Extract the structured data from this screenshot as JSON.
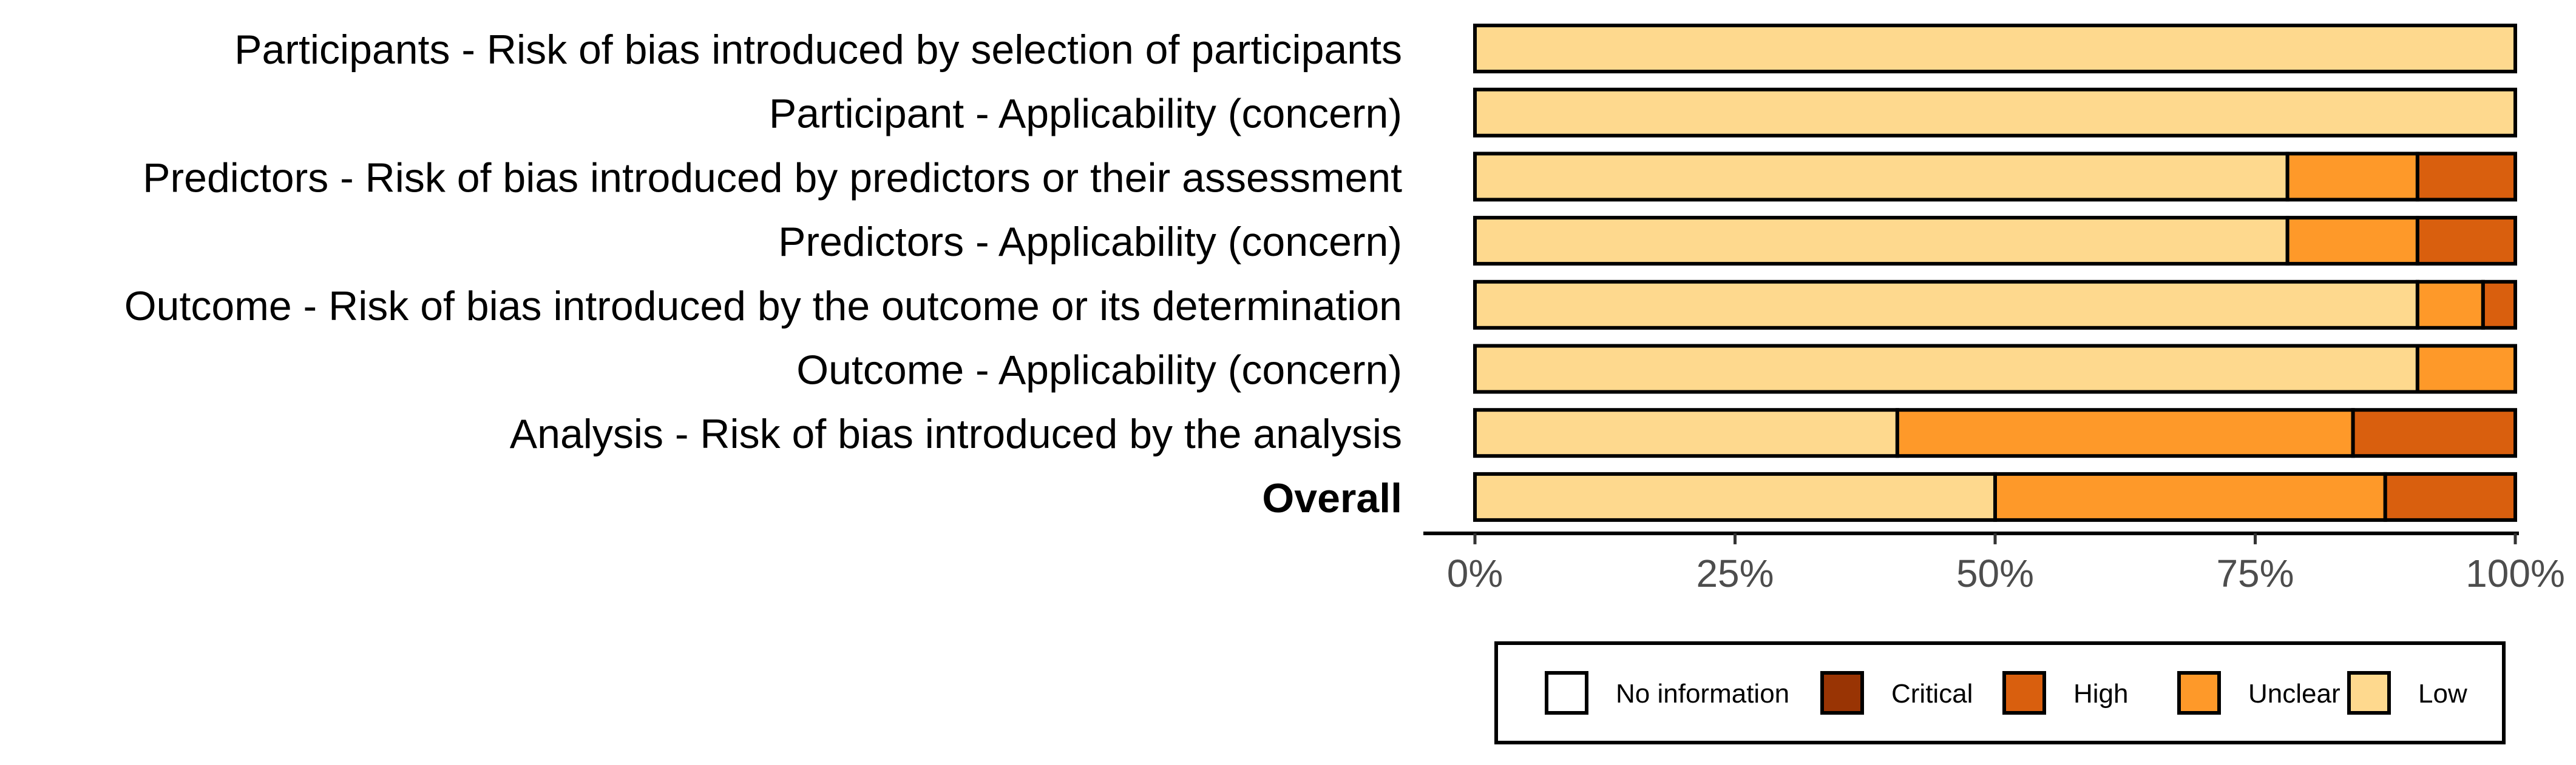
{
  "chart_data": {
    "type": "bar",
    "orientation": "horizontal",
    "stacked": true,
    "categories": [
      "Participants - Risk of bias introduced by selection of participants",
      "Participant - Applicability (concern)",
      "Predictors - Risk of bias introduced by predictors or their assessment",
      "Predictors - Applicability (concern)",
      "Outcome - Risk of bias introduced by the outcome or its determination",
      "Outcome - Applicability  (concern)",
      "Analysis - Risk of bias introduced by the analysis",
      "Overall"
    ],
    "bold_categories": [
      "Overall"
    ],
    "series": [
      {
        "name": "Low",
        "values": [
          100,
          100,
          78.1,
          78.1,
          90.6,
          90.6,
          40.6,
          50.0
        ]
      },
      {
        "name": "Unclear",
        "values": [
          0,
          0,
          12.5,
          12.5,
          6.3,
          9.4,
          43.8,
          37.5
        ]
      },
      {
        "name": "High",
        "values": [
          0,
          0,
          9.4,
          9.4,
          3.1,
          0,
          15.6,
          12.5
        ]
      },
      {
        "name": "Critical",
        "values": [
          0,
          0,
          0,
          0,
          0,
          0,
          0,
          0
        ]
      },
      {
        "name": "No information",
        "values": [
          0,
          0,
          0,
          0,
          0,
          0,
          0,
          0
        ]
      }
    ],
    "xlim": [
      0,
      100
    ],
    "xticks": [
      "0%",
      "25%",
      "50%",
      "75%",
      "100%"
    ],
    "xlabel": "",
    "ylabel": "",
    "title": "",
    "legend": {
      "placement": "bottom",
      "order": [
        "No information",
        "Critical",
        "High",
        "Unclear",
        "Low"
      ]
    },
    "colors": {
      "No information": "#ffffff",
      "Critical": "#993404",
      "High": "#d95f0e",
      "Unclear": "#fe9929",
      "Low": "#fed98e"
    },
    "grid": false
  }
}
